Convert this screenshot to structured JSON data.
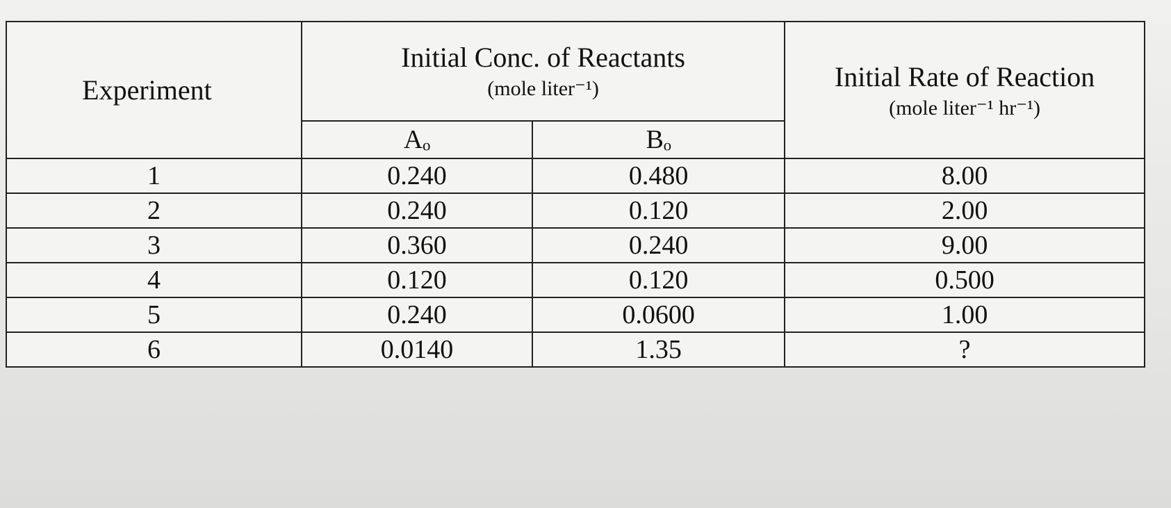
{
  "table": {
    "headers": {
      "experiment": "Experiment",
      "concentration": "Initial Conc. of Reactants",
      "concentration_units": "(mole liter⁻¹)",
      "reactant_a": "Aₒ",
      "reactant_b": "Bₒ",
      "rate": "Initial Rate of Reaction",
      "rate_units": "(mole liter⁻¹ hr⁻¹)"
    },
    "rows": [
      [
        "1",
        "0.240",
        "0.480",
        "8.00"
      ],
      [
        "2",
        "0.240",
        "0.120",
        "2.00"
      ],
      [
        "3",
        "0.360",
        "0.240",
        "9.00"
      ],
      [
        "4",
        "0.120",
        "0.120",
        "0.500"
      ],
      [
        "5",
        "0.240",
        "0.0600",
        "1.00"
      ],
      [
        "6",
        "0.0140",
        "1.35",
        "?"
      ]
    ]
  }
}
